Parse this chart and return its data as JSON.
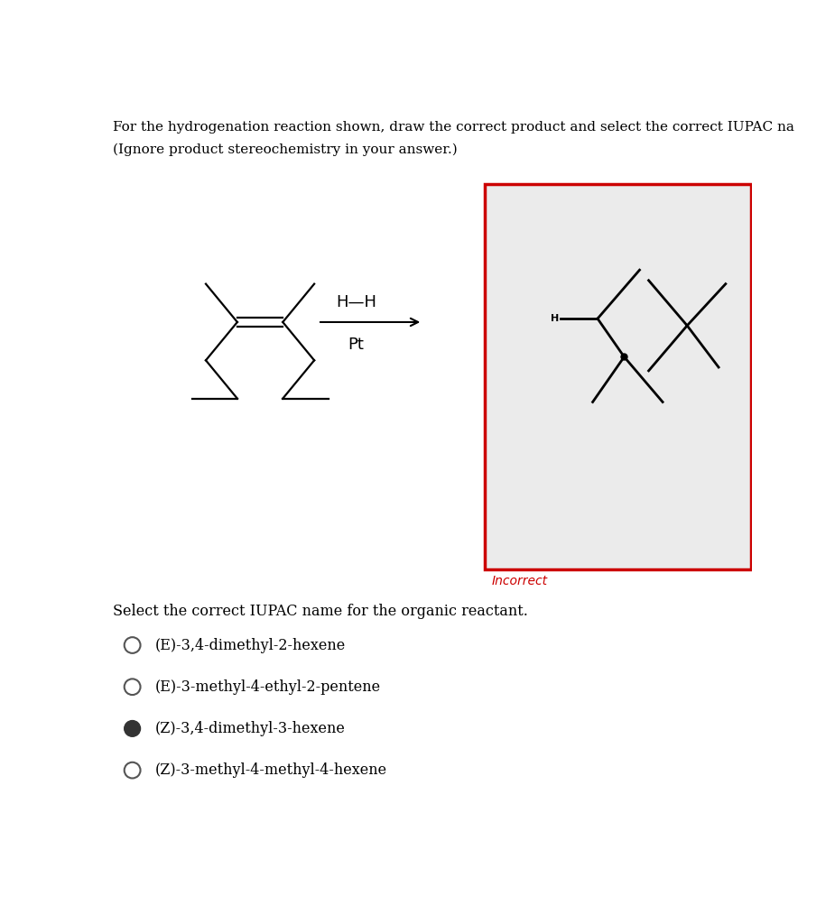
{
  "title_line1": "For the hydrogenation reaction shown, draw the correct product and select the correct IUPAC na",
  "title_line2": "(Ignore product stereochemistry in your answer.)",
  "hh_label": "H—H",
  "catalyst_label": "Pt",
  "incorrect_label": "Incorrect",
  "select_label": "Select the correct IUPAC name for the organic reactant.",
  "options": [
    {
      "text": "(E)-3,4-dimethyl-2-hexene",
      "selected": false
    },
    {
      "text": "(E)-3-methyl-4-ethyl-2-pentene",
      "selected": false
    },
    {
      "text": "(Z)-3,4-dimethyl-3-hexene",
      "selected": true
    },
    {
      "text": "(Z)-3-methyl-4-methyl-4-hexene",
      "selected": false
    }
  ],
  "bg_color": "#ffffff",
  "box_bg_color": "#ebebeb",
  "box_border_color": "#cc0000",
  "incorrect_color": "#cc0000",
  "text_color": "#000000",
  "molecule_color": "#000000",
  "h_label_color": "#000000"
}
